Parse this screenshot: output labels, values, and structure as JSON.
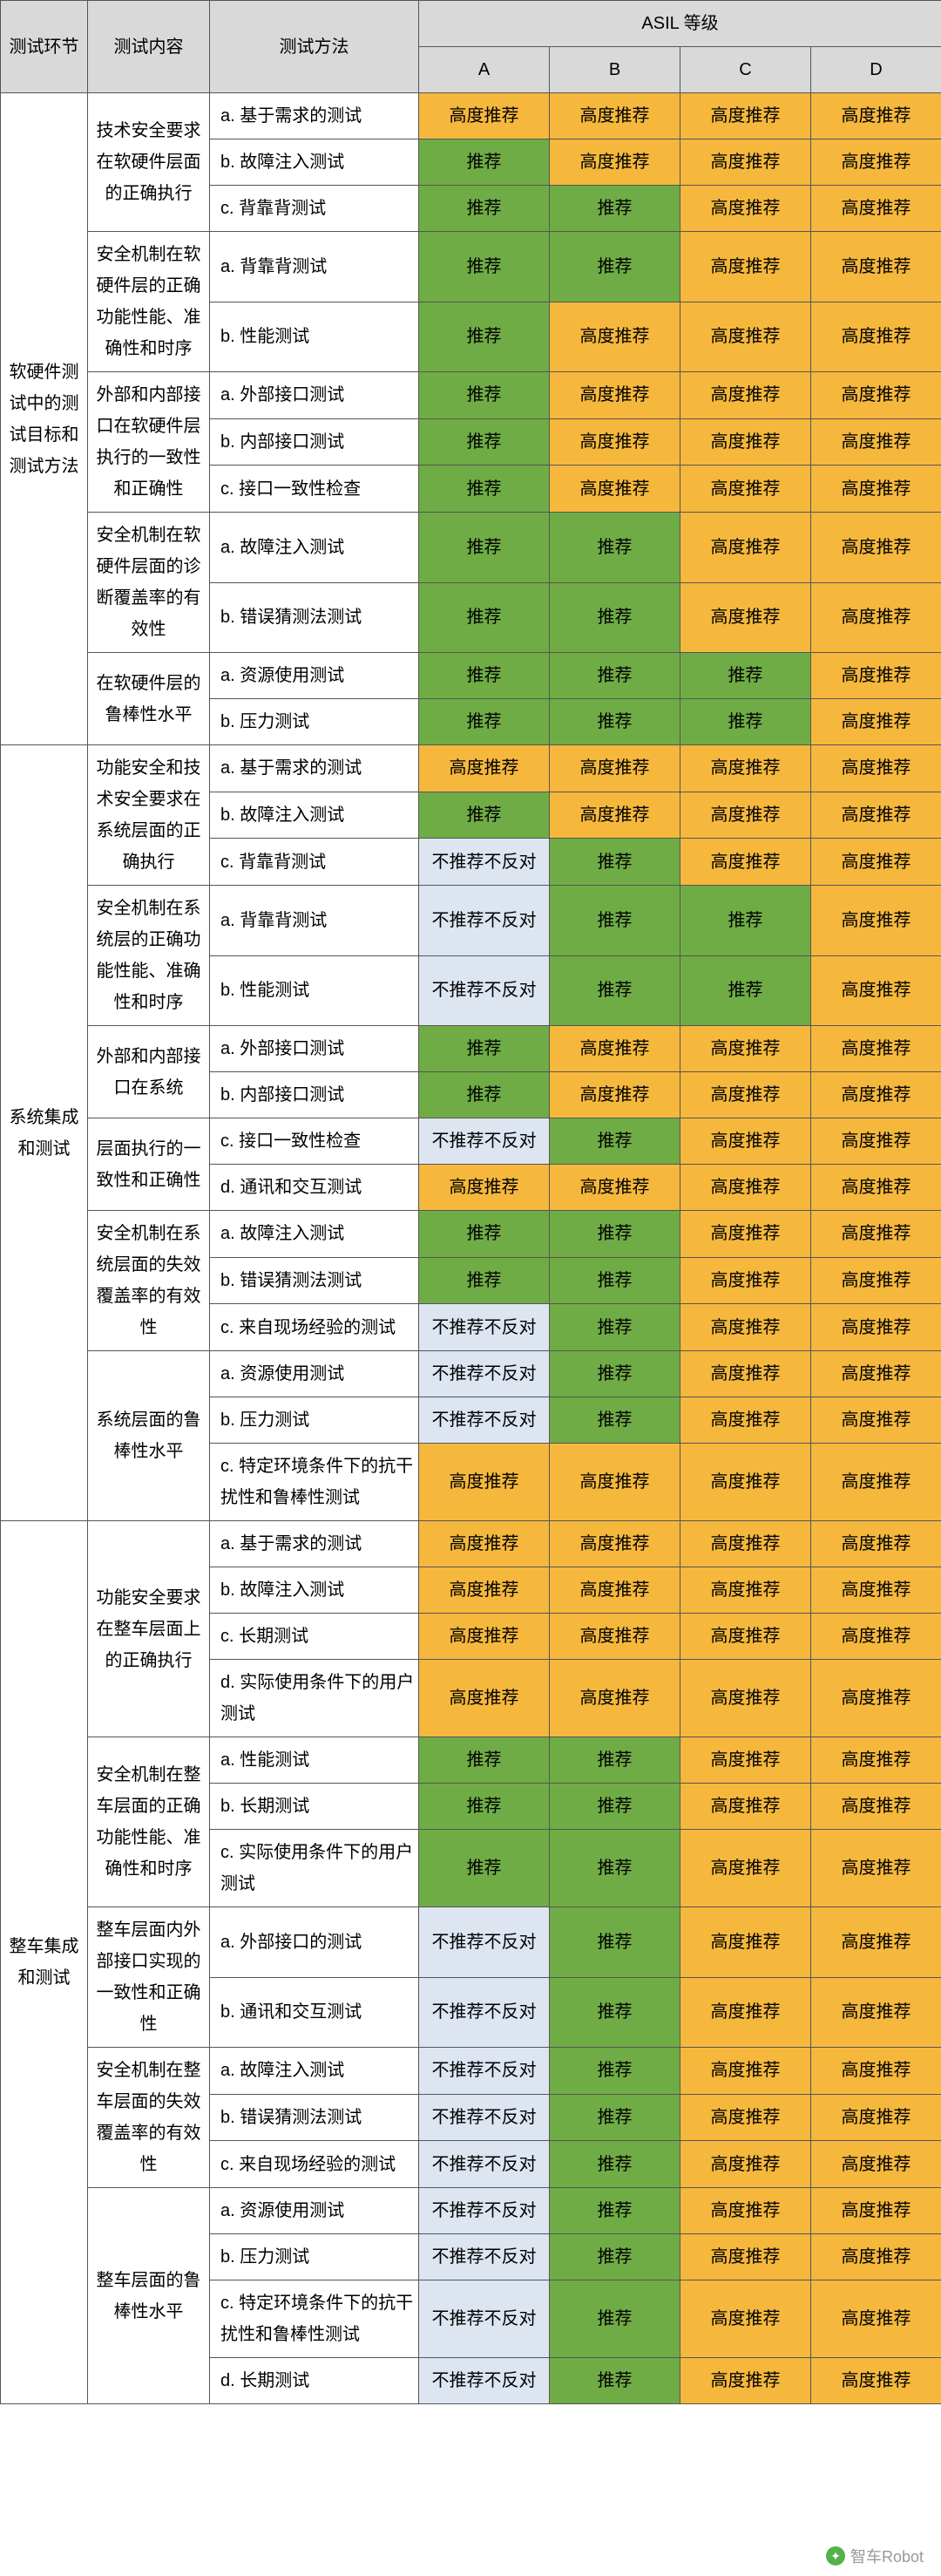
{
  "headers": {
    "phase": "测试环节",
    "content": "测试内容",
    "method": "测试方法",
    "asil": "ASIL 等级",
    "A": "A",
    "B": "B",
    "C": "C",
    "D": "D"
  },
  "colors": {
    "high": "#f5b83d",
    "rec": "#6fac46",
    "neu": "#dde5f1",
    "header": "#d9d9d9"
  },
  "labels": {
    "high": "高度推荐",
    "rec": "推荐",
    "neu": "不推荐不反对"
  },
  "watermark": "智车Robot",
  "phases": [
    {
      "name": "软硬件测试中的测试目标和测试方法",
      "groups": [
        {
          "content": "技术安全要求在软硬件层面的正确执行",
          "rows": [
            {
              "m": "a. 基于需求的测试",
              "v": [
                "high",
                "high",
                "high",
                "high"
              ]
            },
            {
              "m": "b. 故障注入测试",
              "v": [
                "rec",
                "high",
                "high",
                "high"
              ]
            },
            {
              "m": "c. 背靠背测试",
              "v": [
                "rec",
                "rec",
                "high",
                "high"
              ]
            }
          ]
        },
        {
          "content": "安全机制在软硬件层的正确功能性能、准确性和时序",
          "rows": [
            {
              "m": "a. 背靠背测试",
              "v": [
                "rec",
                "rec",
                "high",
                "high"
              ]
            },
            {
              "m": "b. 性能测试",
              "v": [
                "rec",
                "high",
                "high",
                "high"
              ]
            }
          ]
        },
        {
          "content": "外部和内部接口在软硬件层执行的一致性和正确性",
          "rows": [
            {
              "m": "a. 外部接口测试",
              "v": [
                "rec",
                "high",
                "high",
                "high"
              ]
            },
            {
              "m": "b. 内部接口测试",
              "v": [
                "rec",
                "high",
                "high",
                "high"
              ]
            },
            {
              "m": "c. 接口一致性检查",
              "v": [
                "rec",
                "high",
                "high",
                "high"
              ]
            }
          ]
        },
        {
          "content": "安全机制在软硬件层面的诊断覆盖率的有效性",
          "rows": [
            {
              "m": "a. 故障注入测试",
              "v": [
                "rec",
                "rec",
                "high",
                "high"
              ]
            },
            {
              "m": "b. 错误猜测法测试",
              "v": [
                "rec",
                "rec",
                "high",
                "high"
              ]
            }
          ]
        },
        {
          "content": "在软硬件层的鲁棒性水平",
          "rows": [
            {
              "m": "a. 资源使用测试",
              "v": [
                "rec",
                "rec",
                "rec",
                "high"
              ]
            },
            {
              "m": "b. 压力测试",
              "v": [
                "rec",
                "rec",
                "rec",
                "high"
              ]
            }
          ]
        }
      ]
    },
    {
      "name": "系统集成和测试",
      "groups": [
        {
          "content": "功能安全和技术安全要求在系统层面的正确执行",
          "rows": [
            {
              "m": "a. 基于需求的测试",
              "v": [
                "high",
                "high",
                "high",
                "high"
              ]
            },
            {
              "m": "b. 故障注入测试",
              "v": [
                "rec",
                "high",
                "high",
                "high"
              ]
            },
            {
              "m": "c. 背靠背测试",
              "v": [
                "neu",
                "rec",
                "high",
                "high"
              ]
            }
          ]
        },
        {
          "content": "安全机制在系统层的正确功能性能、准确性和时序",
          "rows": [
            {
              "m": "a. 背靠背测试",
              "v": [
                "neu",
                "rec",
                "rec",
                "high"
              ]
            },
            {
              "m": "b. 性能测试",
              "v": [
                "neu",
                "rec",
                "rec",
                "high"
              ]
            }
          ]
        },
        {
          "content": "外部和内部接口在系统",
          "rows": [
            {
              "m": "a. 外部接口测试",
              "v": [
                "rec",
                "high",
                "high",
                "high"
              ]
            },
            {
              "m": "b. 内部接口测试",
              "v": [
                "rec",
                "high",
                "high",
                "high"
              ]
            }
          ]
        },
        {
          "content": "层面执行的一致性和正确性",
          "rows": [
            {
              "m": "c. 接口一致性检查",
              "v": [
                "neu",
                "rec",
                "high",
                "high"
              ]
            },
            {
              "m": "d. 通讯和交互测试",
              "v": [
                "high",
                "high",
                "high",
                "high"
              ]
            }
          ]
        },
        {
          "content": "安全机制在系统层面的失效覆盖率的有效性",
          "rows": [
            {
              "m": "a. 故障注入测试",
              "v": [
                "rec",
                "rec",
                "high",
                "high"
              ]
            },
            {
              "m": "b. 错误猜测法测试",
              "v": [
                "rec",
                "rec",
                "high",
                "high"
              ]
            },
            {
              "m": "c. 来自现场经验的测试",
              "v": [
                "neu",
                "rec",
                "high",
                "high"
              ]
            }
          ]
        },
        {
          "content": "系统层面的鲁棒性水平",
          "rows": [
            {
              "m": "a. 资源使用测试",
              "v": [
                "neu",
                "rec",
                "high",
                "high"
              ]
            },
            {
              "m": "b. 压力测试",
              "v": [
                "neu",
                "rec",
                "high",
                "high"
              ]
            },
            {
              "m": "c. 特定环境条件下的抗干扰性和鲁棒性测试",
              "v": [
                "high",
                "high",
                "high",
                "high"
              ]
            }
          ]
        }
      ]
    },
    {
      "name": "整车集成和测试",
      "groups": [
        {
          "content": "功能安全要求在整车层面上的正确执行",
          "rows": [
            {
              "m": "a. 基于需求的测试",
              "v": [
                "high",
                "high",
                "high",
                "high"
              ]
            },
            {
              "m": "b. 故障注入测试",
              "v": [
                "high",
                "high",
                "high",
                "high"
              ]
            },
            {
              "m": "c. 长期测试",
              "v": [
                "high",
                "high",
                "high",
                "high"
              ]
            },
            {
              "m": "d. 实际使用条件下的用户测试",
              "v": [
                "high",
                "high",
                "high",
                "high"
              ]
            }
          ]
        },
        {
          "content": "安全机制在整车层面的正确功能性能、准确性和时序",
          "rows": [
            {
              "m": "a. 性能测试",
              "v": [
                "rec",
                "rec",
                "high",
                "high"
              ]
            },
            {
              "m": "b. 长期测试",
              "v": [
                "rec",
                "rec",
                "high",
                "high"
              ]
            },
            {
              "m": "c. 实际使用条件下的用户测试",
              "v": [
                "rec",
                "rec",
                "high",
                "high"
              ]
            }
          ]
        },
        {
          "content": "整车层面内外部接口实现的一致性和正确性",
          "rows": [
            {
              "m": "a. 外部接口的测试",
              "v": [
                "neu",
                "rec",
                "high",
                "high"
              ]
            },
            {
              "m": "b. 通讯和交互测试",
              "v": [
                "neu",
                "rec",
                "high",
                "high"
              ]
            }
          ]
        },
        {
          "content": "安全机制在整车层面的失效覆盖率的有效性",
          "rows": [
            {
              "m": "a. 故障注入测试",
              "v": [
                "neu",
                "rec",
                "high",
                "high"
              ]
            },
            {
              "m": "b. 错误猜测法测试",
              "v": [
                "neu",
                "rec",
                "high",
                "high"
              ]
            },
            {
              "m": "c. 来自现场经验的测试",
              "v": [
                "neu",
                "rec",
                "high",
                "high"
              ]
            }
          ]
        },
        {
          "content": "整车层面的鲁棒性水平",
          "rows": [
            {
              "m": "a. 资源使用测试",
              "v": [
                "neu",
                "rec",
                "high",
                "high"
              ]
            },
            {
              "m": "b. 压力测试",
              "v": [
                "neu",
                "rec",
                "high",
                "high"
              ]
            },
            {
              "m": "c. 特定环境条件下的抗干扰性和鲁棒性测试",
              "v": [
                "neu",
                "rec",
                "high",
                "high"
              ]
            },
            {
              "m": "d. 长期测试",
              "v": [
                "neu",
                "rec",
                "high",
                "high"
              ]
            }
          ]
        }
      ]
    }
  ]
}
